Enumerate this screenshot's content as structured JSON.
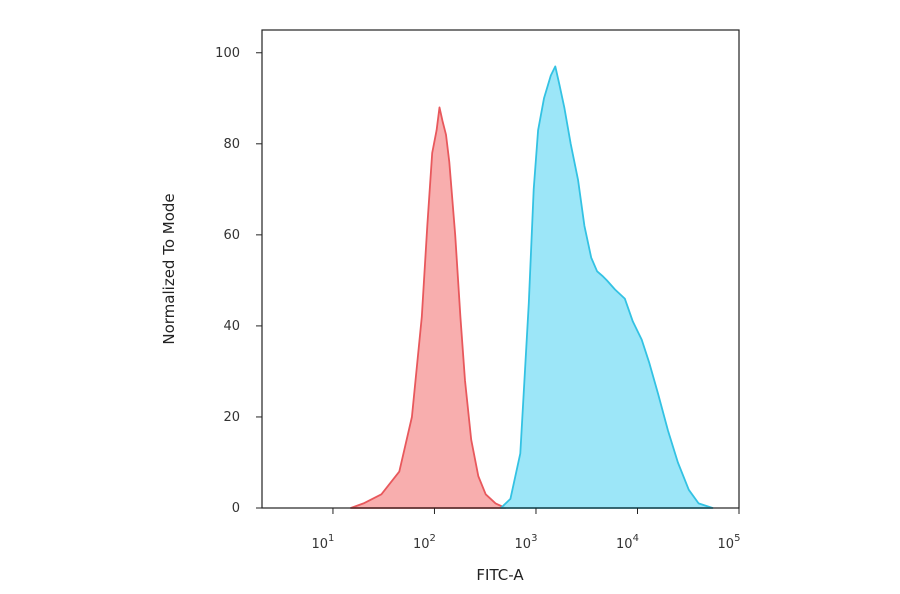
{
  "chart_data": {
    "type": "area",
    "xlabel": "FITC-A",
    "ylabel": "Normalized To Mode",
    "x_scale": "log",
    "xlim": [
      2,
      100000
    ],
    "ylim": [
      0,
      105
    ],
    "x_ticks": [
      {
        "value": 10,
        "base": "10",
        "exp": "1"
      },
      {
        "value": 100,
        "base": "10",
        "exp": "2"
      },
      {
        "value": 1000,
        "base": "10",
        "exp": "3"
      },
      {
        "value": 10000,
        "base": "10",
        "exp": "4"
      },
      {
        "value": 100000,
        "base": "10",
        "exp": "5"
      }
    ],
    "y_ticks": [
      0,
      20,
      40,
      60,
      80,
      100
    ],
    "grid": false,
    "series": [
      {
        "color": "#e8585c",
        "fill": "#f7a3a3",
        "points": [
          [
            15,
            0
          ],
          [
            20,
            1
          ],
          [
            30,
            3
          ],
          [
            45,
            8
          ],
          [
            60,
            20
          ],
          [
            75,
            42
          ],
          [
            85,
            62
          ],
          [
            95,
            78
          ],
          [
            105,
            83
          ],
          [
            112,
            88
          ],
          [
            120,
            85
          ],
          [
            130,
            82
          ],
          [
            140,
            76
          ],
          [
            160,
            60
          ],
          [
            180,
            42
          ],
          [
            200,
            28
          ],
          [
            230,
            15
          ],
          [
            270,
            7
          ],
          [
            320,
            3
          ],
          [
            400,
            1
          ],
          [
            500,
            0
          ]
        ]
      },
      {
        "color": "#33c2e3",
        "fill": "#8ee3f7",
        "points": [
          [
            450,
            0
          ],
          [
            560,
            2
          ],
          [
            700,
            12
          ],
          [
            850,
            45
          ],
          [
            950,
            70
          ],
          [
            1050,
            83
          ],
          [
            1200,
            90
          ],
          [
            1400,
            95
          ],
          [
            1550,
            97
          ],
          [
            1700,
            93
          ],
          [
            1900,
            88
          ],
          [
            2200,
            80
          ],
          [
            2600,
            72
          ],
          [
            3000,
            62
          ],
          [
            3500,
            55
          ],
          [
            4000,
            52
          ],
          [
            4500,
            51
          ],
          [
            5000,
            50
          ],
          [
            6000,
            48
          ],
          [
            7500,
            46
          ],
          [
            9000,
            41
          ],
          [
            11000,
            37
          ],
          [
            13000,
            32
          ],
          [
            16000,
            25
          ],
          [
            20000,
            17
          ],
          [
            25000,
            10
          ],
          [
            32000,
            4
          ],
          [
            40000,
            1
          ],
          [
            55000,
            0
          ]
        ]
      }
    ]
  }
}
